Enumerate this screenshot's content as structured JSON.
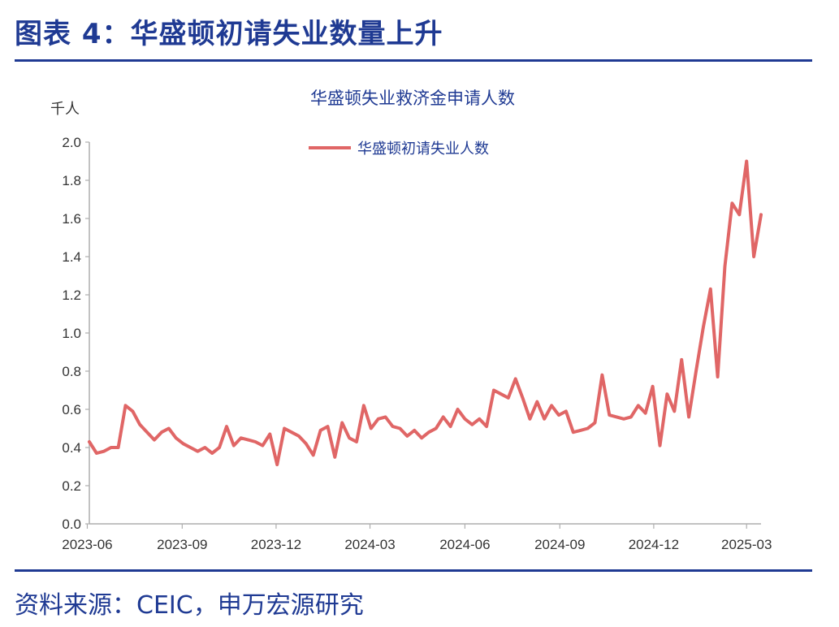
{
  "header": {
    "title": "图表 4：华盛顿初请失业数量上升"
  },
  "footer": {
    "source": "资料来源：CEIC，申万宏源研究"
  },
  "colors": {
    "accent": "#1f3a93",
    "series": "#e06666",
    "axis": "#aeaeae"
  },
  "chart_data": {
    "type": "line",
    "title": "华盛顿失业救济金申请人数",
    "unit_label": "千人",
    "ylim": [
      0,
      2.0
    ],
    "y_ticks": [
      "0.0",
      "0.2",
      "0.4",
      "0.6",
      "0.8",
      "1.0",
      "1.2",
      "1.4",
      "1.6",
      "1.8",
      "2.0"
    ],
    "x_tick_labels": [
      "2023-06",
      "2023-09",
      "2023-12",
      "2024-03",
      "2024-06",
      "2024-09",
      "2024-12",
      "2025-03"
    ],
    "x_range": [
      "2023-06-03",
      "2025-03-15"
    ],
    "grid": false,
    "legend_position": "top-center",
    "series": [
      {
        "name": "华盛顿初请失业人数",
        "frequency": "weekly",
        "start": "2023-06-03",
        "values": [
          0.43,
          0.37,
          0.38,
          0.4,
          0.4,
          0.62,
          0.59,
          0.52,
          0.48,
          0.44,
          0.48,
          0.5,
          0.45,
          0.42,
          0.4,
          0.38,
          0.4,
          0.37,
          0.4,
          0.51,
          0.41,
          0.45,
          0.44,
          0.43,
          0.41,
          0.47,
          0.31,
          0.5,
          0.48,
          0.46,
          0.42,
          0.36,
          0.49,
          0.51,
          0.35,
          0.53,
          0.45,
          0.43,
          0.62,
          0.5,
          0.55,
          0.56,
          0.51,
          0.5,
          0.46,
          0.49,
          0.45,
          0.48,
          0.5,
          0.56,
          0.51,
          0.6,
          0.55,
          0.52,
          0.55,
          0.51,
          0.7,
          0.68,
          0.66,
          0.76,
          0.66,
          0.55,
          0.64,
          0.55,
          0.62,
          0.57,
          0.59,
          0.48,
          0.49,
          0.5,
          0.53,
          0.78,
          0.57,
          0.56,
          0.55,
          0.56,
          0.62,
          0.58,
          0.72,
          0.41,
          0.68,
          0.59,
          0.86,
          0.56,
          0.8,
          1.03,
          1.23,
          0.77,
          1.35,
          1.68,
          1.62,
          1.9,
          1.4,
          1.62
        ]
      }
    ]
  }
}
